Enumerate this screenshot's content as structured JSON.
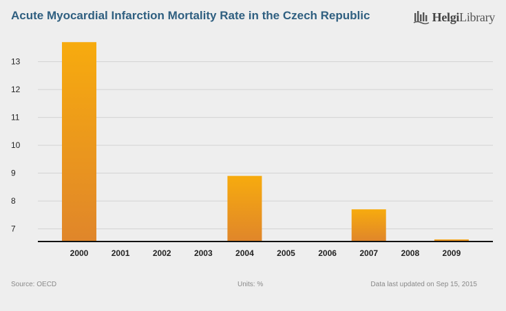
{
  "chart_data": {
    "type": "bar",
    "title": "Acute Myocardial Infarction Mortality Rate in the Czech Republic",
    "categories": [
      "2000",
      "2001",
      "2002",
      "2003",
      "2004",
      "2005",
      "2006",
      "2007",
      "2008",
      "2009"
    ],
    "values": [
      13.7,
      null,
      null,
      null,
      8.9,
      null,
      null,
      7.7,
      null,
      6.62
    ],
    "yticks": [
      7,
      8,
      9,
      10,
      11,
      12,
      13
    ],
    "ylim": [
      6.57,
      14
    ],
    "grid": true,
    "bar_color_top": "#f7ab0e",
    "bar_color_bottom": "#e0862a"
  },
  "brand": {
    "logo_bold": "Helgi",
    "logo_regular": "Library"
  },
  "footer": {
    "source": "Source: OECD",
    "units": "Units: %",
    "updated": "Data last updated on Sep 15, 2015"
  }
}
